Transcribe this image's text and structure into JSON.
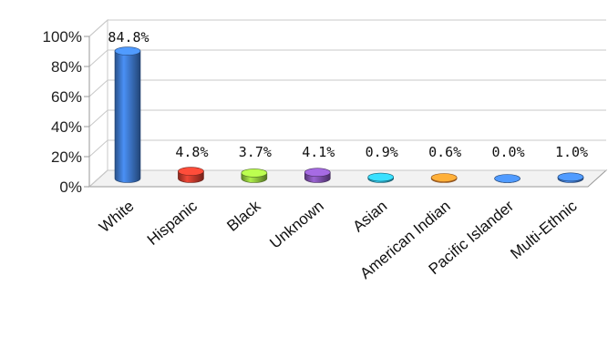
{
  "chart_data": {
    "type": "bar",
    "categories": [
      "White",
      "Hispanic",
      "Black",
      "Unknown",
      "Asian",
      "American Indian",
      "Pacific Islander",
      "Multi-Ethnic"
    ],
    "values": [
      84.8,
      4.8,
      3.7,
      4.1,
      0.9,
      0.6,
      0.0,
      1.0
    ],
    "value_labels": [
      "84.8%",
      "4.8%",
      "3.7%",
      "4.1%",
      "0.9%",
      "0.6%",
      "0.0%",
      "1.0%"
    ],
    "y_ticks": [
      0,
      20,
      40,
      60,
      80,
      100
    ],
    "y_tick_labels": [
      "0%",
      "20%",
      "40%",
      "60%",
      "80%",
      "100%"
    ],
    "ylim": [
      0,
      100
    ],
    "title": "",
    "xlabel": "",
    "ylabel": "",
    "grid": true,
    "legend": "none",
    "style": "3d-cylinder",
    "colors": [
      "#3b73c4",
      "#c0392b",
      "#8bbf3b",
      "#7b4fa8",
      "#2aa6c4",
      "#e8822a",
      "#3b73c4",
      "#3b73c4"
    ],
    "grid_color": "#c8c8c8",
    "axis_color": "#999999"
  }
}
